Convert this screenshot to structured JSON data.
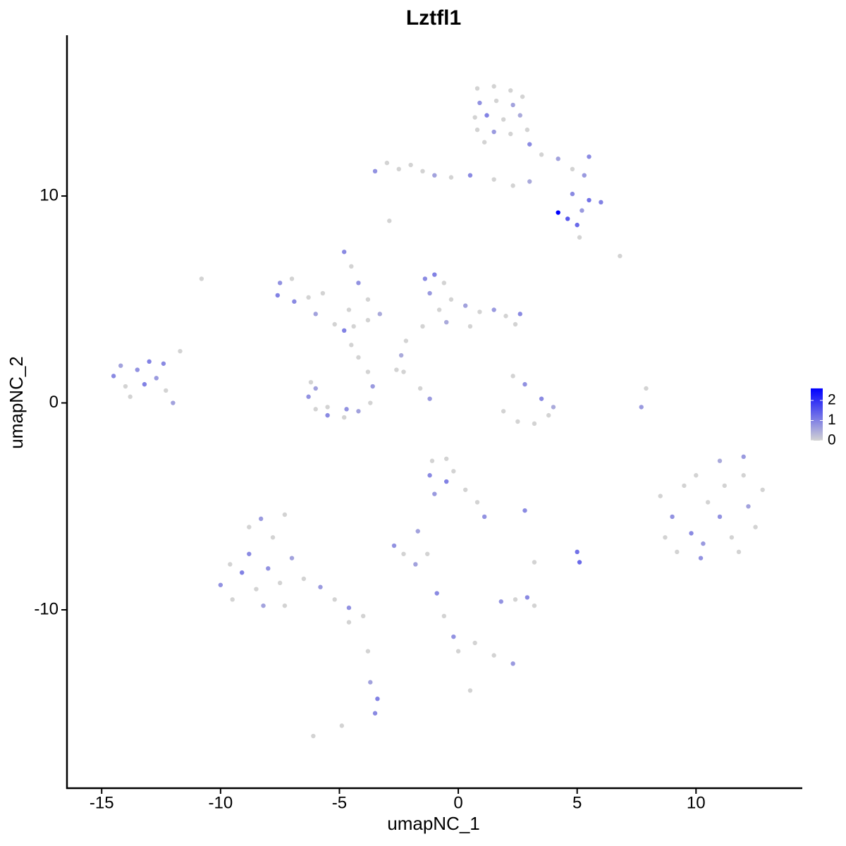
{
  "chart_data": {
    "type": "scatter",
    "title": "Lztfl1",
    "x_label": "umapNC_1",
    "y_label": "umapNC_2",
    "xlim": [
      -16.46,
      14.47
    ],
    "ylim": [
      -18.62,
      17.77
    ],
    "xticks": [
      -15,
      -10,
      -5,
      0,
      5,
      10
    ],
    "yticks": [
      -10,
      0,
      10
    ],
    "color_scale": {
      "low": "#d3d3d3",
      "high": "#0000ff",
      "limits": [
        0,
        2.6
      ],
      "ticks": [
        0,
        1,
        2
      ]
    },
    "x": [
      0.8,
      1.5,
      2.2,
      2.7,
      0.9,
      1.6,
      2.3,
      0.7,
      1.2,
      1.9,
      2.6,
      0.8,
      1.5,
      2.2,
      2.9,
      1.1,
      3.0,
      3.5,
      4.2,
      4.8,
      5.5,
      5.3,
      -3.5,
      -3.0,
      -2.5,
      -2,
      -1.5,
      -1,
      -0.3,
      0.5,
      1.5,
      2.3,
      3.0,
      4.8,
      5.5,
      6,
      5.2,
      4.2,
      4.6,
      5.0,
      5.1,
      6.8,
      -2.9,
      -10.8,
      -7.5,
      -7.0,
      -7.6,
      -6.9,
      -6.3,
      -5.7,
      -6.0,
      -5.2,
      -4.8,
      -4.4,
      -4.6,
      -3.8,
      -3.3,
      -4.8,
      -4.5,
      -4.2,
      -3.8,
      -1.4,
      -1.0,
      -0.6,
      -1.2,
      -0.3,
      0.3,
      -0.8,
      0.9,
      1.5,
      2.0,
      2.6,
      2.4,
      -1.5,
      -0.5,
      0.5,
      -2.2,
      -2.4,
      -2.6,
      -6.2,
      -6.3,
      -6.0,
      -5.5,
      -4.8,
      -4.2,
      -3.7,
      -3.6,
      -3.8,
      -4.2,
      -4.5,
      -5.5,
      -4.7,
      -6.0,
      -2.3,
      -1.6,
      -1.2,
      -14.5,
      -14,
      -13.5,
      -13,
      -12.7,
      -12.3,
      -13.8,
      -14.2,
      -13.2,
      -12.4,
      -12.0,
      -11.7,
      1.9,
      2.5,
      3.2,
      3.8,
      4.0,
      2.8,
      3.5,
      2.3,
      7.9,
      7.7,
      8.5,
      9,
      8.7,
      9.2,
      9.8,
      10,
      10.5,
      10.3,
      11,
      11.2,
      11,
      11.5,
      12,
      12.2,
      12.5,
      12.8,
      11.8,
      10.2,
      9.5,
      12.0,
      -1.1,
      -0.5,
      -1.2,
      -0.5,
      -0.2,
      0.3,
      0.8,
      1.1,
      -1.0,
      -2.7,
      -2.3,
      -1.7,
      -1.8,
      -1.3,
      2.8,
      3.2,
      5.0,
      5.1,
      1.8,
      2.4,
      2.9,
      3.2,
      -0.9,
      -0.6,
      -0.2,
      0,
      0.7,
      1.5,
      2.3,
      -3.8,
      -3.7,
      -3.4,
      -3.5,
      0.5,
      -6.1,
      -4.9,
      -10,
      -9.5,
      -9.1,
      -8.8,
      -8.5,
      -8,
      -7.5,
      -8.8,
      -8.3,
      -7.8,
      -7.3,
      -7.0,
      -9.6,
      -8.2,
      -6.5,
      -5.8,
      -5.2,
      -4.6,
      -4.0,
      -4.6,
      -7.3
    ],
    "y": [
      15.2,
      15.3,
      15.1,
      14.8,
      14.5,
      14.6,
      14.4,
      13.8,
      13.9,
      13.7,
      13.9,
      13.2,
      13.1,
      13.0,
      13.2,
      12.6,
      12.5,
      12.0,
      11.8,
      11.3,
      11.9,
      11.0,
      11.2,
      11.6,
      11.3,
      11.5,
      11.2,
      11,
      10.9,
      11,
      10.8,
      10.5,
      10.7,
      10.1,
      9.8,
      9.7,
      9.3,
      9.2,
      8.9,
      8.6,
      8.0,
      7.1,
      8.8,
      6.0,
      5.8,
      6.0,
      5.2,
      4.9,
      5.1,
      5.3,
      4.3,
      3.8,
      3.5,
      3.7,
      4.5,
      4.0,
      4.3,
      7.3,
      6.6,
      5.8,
      5.0,
      6.0,
      6.2,
      5.8,
      5.3,
      5.0,
      4.7,
      4.5,
      4.4,
      4.5,
      4.2,
      4.3,
      3.8,
      3.7,
      3.9,
      3.7,
      3.0,
      2.3,
      1.6,
      1.0,
      0.3,
      -0.3,
      -0.6,
      -0.7,
      -0.4,
      0,
      0.8,
      1.5,
      2.2,
      2.8,
      -0.2,
      -0.3,
      0.7,
      1.5,
      0.7,
      0.2,
      1.3,
      0.8,
      1.6,
      2.0,
      1.2,
      0.6,
      0.3,
      1.8,
      0.9,
      1.9,
      0.0,
      2.5,
      -0.4,
      -0.9,
      -1.0,
      -0.6,
      -0.2,
      0.9,
      0.2,
      1.3,
      0.7,
      -0.2,
      -4.5,
      -5.5,
      -6.5,
      -7.2,
      -6.3,
      -3.5,
      -4.8,
      -6.8,
      -2.8,
      -4.0,
      -5.5,
      -6.5,
      -3.5,
      -5,
      -6,
      -4.2,
      -7.2,
      -7.5,
      -4.0,
      -2.6,
      -2.8,
      -2.7,
      -3.5,
      -3.8,
      -3.3,
      -4.2,
      -4.8,
      -5.5,
      -4.4,
      -6.9,
      -7.3,
      -6.2,
      -7.8,
      -7.3,
      -5.2,
      -7.7,
      -7.2,
      -7.7,
      -9.6,
      -9.5,
      -9.4,
      -9.8,
      -9.2,
      -10.3,
      -11.3,
      -12.0,
      -11.6,
      -12.2,
      -12.6,
      -12.0,
      -13.5,
      -14.3,
      -15.0,
      -13.9,
      -16.1,
      -15.6,
      -8.8,
      -9.5,
      -8.2,
      -7.3,
      -9.0,
      -8,
      -8.7,
      -6.0,
      -5.6,
      -6.5,
      -5.4,
      -7.5,
      -7.8,
      -9.8,
      -8.5,
      -8.9,
      -9.5,
      -9.9,
      -10.3,
      -10.6,
      -9.8
    ],
    "values": [
      0,
      0,
      0,
      0,
      0.8,
      0,
      0.6,
      0,
      1,
      0,
      0.5,
      0,
      0.7,
      0,
      0,
      0,
      0.9,
      0,
      0.6,
      0,
      0.9,
      0.7,
      0.8,
      0,
      0,
      0,
      0,
      0.6,
      0,
      0.9,
      0,
      0,
      0.5,
      0.9,
      1.2,
      1,
      0.7,
      2.6,
      1.5,
      1.3,
      0,
      0,
      0,
      0,
      0.8,
      0,
      1,
      0.9,
      0,
      0,
      0.6,
      0,
      1,
      0,
      0,
      0,
      0.5,
      0.9,
      0,
      0.8,
      0,
      0.9,
      1,
      0,
      0.7,
      0,
      0.6,
      0,
      0,
      0.7,
      0,
      0.9,
      0,
      0,
      0.5,
      0,
      0,
      0.5,
      0,
      0,
      0.8,
      0,
      0.9,
      0,
      0.6,
      0,
      0.7,
      0,
      0,
      0,
      0,
      0.8,
      0.6,
      0,
      0,
      0.7,
      0.9,
      0,
      0.8,
      1,
      0.7,
      0,
      0,
      0.6,
      1,
      0.9,
      0.6,
      0,
      0,
      0,
      0,
      0,
      0.5,
      0.8,
      0.9,
      0,
      0,
      0.7,
      0,
      0.8,
      0,
      0,
      0.9,
      0,
      0,
      0.7,
      0.5,
      0,
      0.8,
      0,
      0,
      0.6,
      0,
      0,
      0,
      0.8,
      0,
      0.7,
      0,
      0,
      0.9,
      1,
      0,
      0,
      0,
      0.8,
      0.7,
      0.8,
      0,
      0.6,
      0.6,
      0,
      0.9,
      0,
      1.2,
      1.3,
      0.8,
      0,
      0.9,
      0,
      0.9,
      0,
      0.8,
      0,
      0,
      0,
      0.7,
      0,
      0.6,
      1,
      0.9,
      0,
      0,
      0,
      0.8,
      0,
      1,
      0.9,
      0,
      0.8,
      0,
      0,
      0.7,
      0,
      0,
      0.6,
      0,
      0.6,
      0,
      0.7,
      0,
      0.8,
      0,
      0,
      0
    ]
  }
}
